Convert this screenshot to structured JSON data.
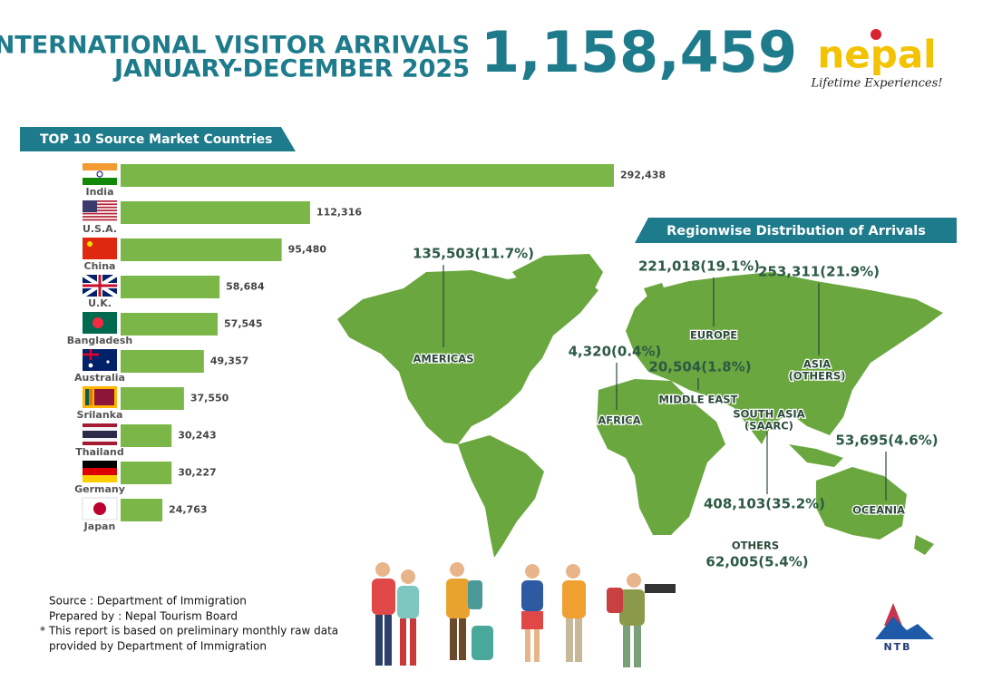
{
  "header": {
    "title_line1": "INTERNATIONAL VISITOR ARRIVALS",
    "title_line2": "JANUARY-DECEMBER 2025",
    "total": "1,158,459"
  },
  "logo": {
    "brand": "nepal",
    "tagline": "Lifetime Experiences!",
    "board": "NTB"
  },
  "chart_data": {
    "type": "bar",
    "orientation": "horizontal",
    "title": "TOP 10 Source Market Countries",
    "categories": [
      "India",
      "U.S.A.",
      "China",
      "U.K.",
      "Bangladesh",
      "Australia",
      "Srilanka",
      "Thailand",
      "Germany",
      "Japan"
    ],
    "values": [
      292438,
      112316,
      95480,
      58684,
      57545,
      49357,
      37550,
      30243,
      30227,
      24763
    ],
    "value_labels": [
      "292,438",
      "112,316",
      "95,480",
      "58,684",
      "57,545",
      "49,357",
      "37,550",
      "30,243",
      "30,227",
      "24,763"
    ],
    "color": "#7ab648"
  },
  "regions": {
    "title": "Regionwise Distribution of Arrivals",
    "items": [
      {
        "name_lines": [
          "AMERICAS"
        ],
        "label": "135,503(11.7%)"
      },
      {
        "name_lines": [
          "EUROPE"
        ],
        "label": "221,018(19.1%)"
      },
      {
        "name_lines": [
          "ASIA",
          "(OTHERS)"
        ],
        "label": "253,311(21.9%)"
      },
      {
        "name_lines": [
          "AFRICA"
        ],
        "label": "4,320(0.4%)"
      },
      {
        "name_lines": [
          "MIDDLE EAST"
        ],
        "label": "20,504(1.8%)"
      },
      {
        "name_lines": [
          "SOUTH ASIA",
          "(SAARC)"
        ],
        "label": "408,103(35.2%)"
      },
      {
        "name_lines": [
          "OCEANIA"
        ],
        "label": "53,695(4.6%)"
      },
      {
        "name_lines": [
          "OTHERS"
        ],
        "label": "62,005(5.4%)"
      }
    ]
  },
  "notes": [
    "Source : Department of Immigration",
    "Prepared by : Nepal Tourism Board",
    "* This report is based on preliminary monthly raw data",
    "provided by Department of Immigration"
  ]
}
